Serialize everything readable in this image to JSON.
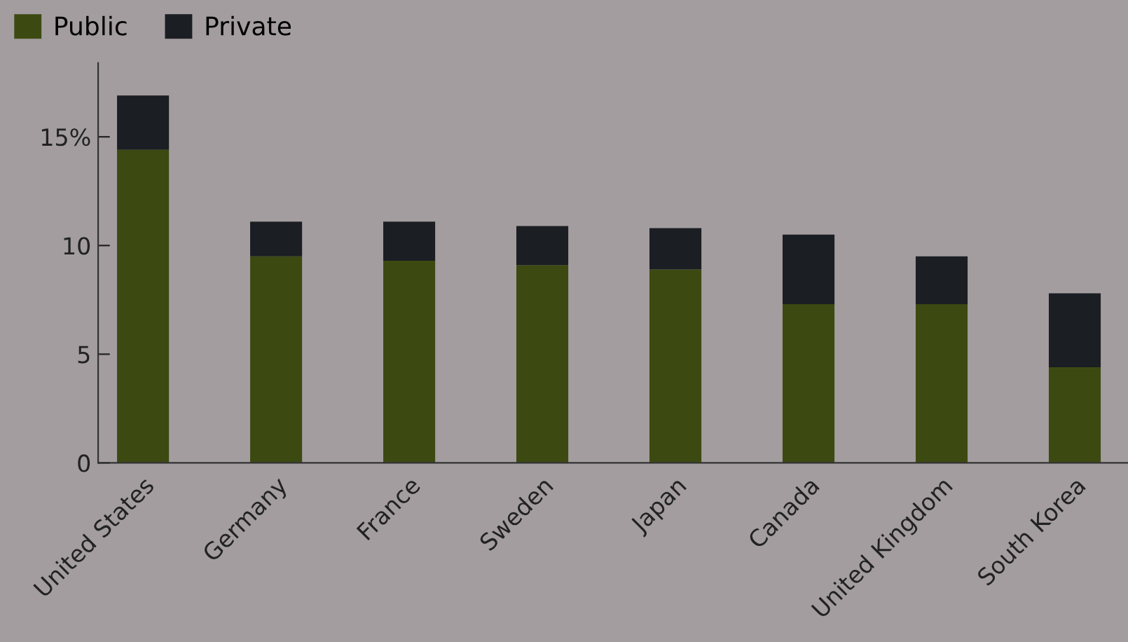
{
  "chart_data": {
    "type": "bar",
    "stacked": true,
    "categories": [
      "United States",
      "Germany",
      "France",
      "Sweden",
      "Japan",
      "Canada",
      "United Kingdom",
      "South Korea"
    ],
    "series": [
      {
        "name": "Public",
        "color": "#3c4a12",
        "values": [
          14.4,
          9.5,
          9.3,
          9.1,
          8.9,
          7.3,
          7.3,
          4.4
        ]
      },
      {
        "name": "Private",
        "color": "#1b1e22",
        "values": [
          2.5,
          1.6,
          1.8,
          1.8,
          1.9,
          3.2,
          2.2,
          3.4
        ]
      }
    ],
    "ylim": [
      0,
      18.4
    ],
    "yticks": [
      0,
      5,
      10,
      {
        "value": 15,
        "label": "15%"
      }
    ],
    "grid": false,
    "legend": "top left"
  }
}
